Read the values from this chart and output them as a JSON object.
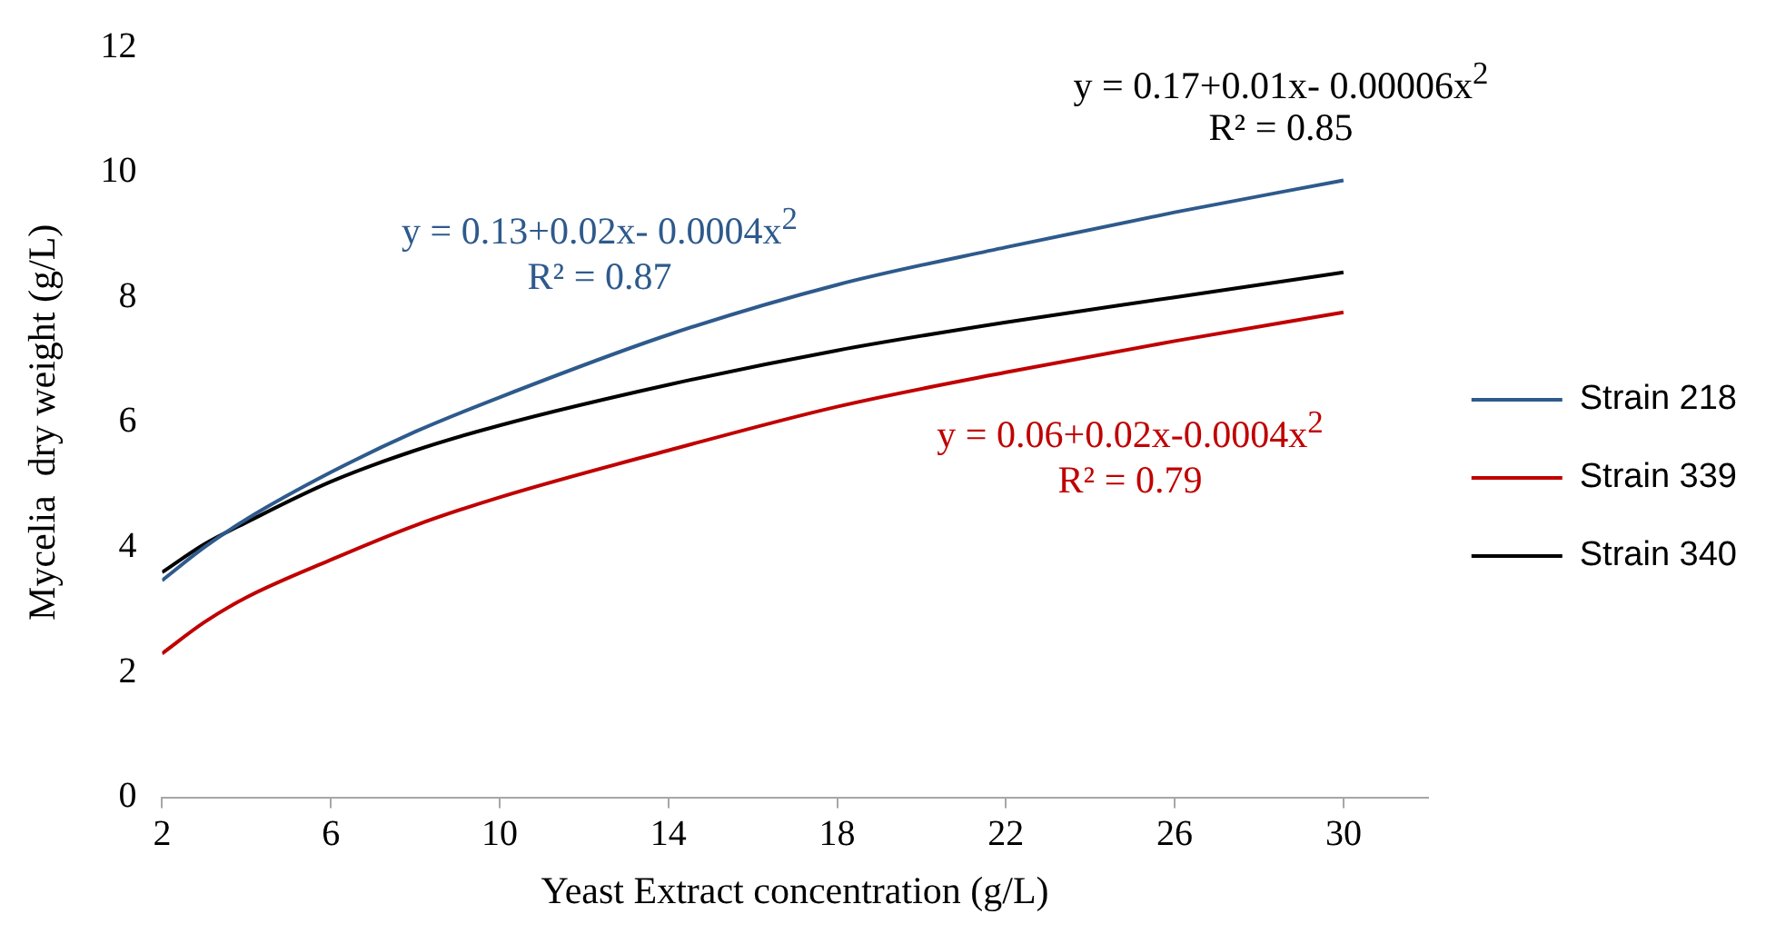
{
  "chart_data": {
    "type": "line",
    "xlabel": "Yeast Extract concentration (g/L)",
    "ylabel": "Mycelia  dry weight (g/L)",
    "x": [
      2,
      3,
      4,
      6,
      8,
      10,
      14,
      18,
      22,
      26,
      30
    ],
    "series": [
      {
        "name": "Strain 218",
        "color": "#2e5a8c",
        "values": [
          3.47,
          4.0,
          4.45,
          5.2,
          5.85,
          6.4,
          7.4,
          8.2,
          8.8,
          9.36,
          9.87
        ]
      },
      {
        "name": "Strain 339",
        "color": "#c00000",
        "values": [
          2.3,
          2.8,
          3.2,
          3.8,
          4.35,
          4.8,
          5.55,
          6.25,
          6.8,
          7.3,
          7.76
        ]
      },
      {
        "name": "Strain 340",
        "color": "#000000",
        "values": [
          3.6,
          4.05,
          4.4,
          5.05,
          5.55,
          5.95,
          6.6,
          7.15,
          7.6,
          8.0,
          8.4
        ]
      }
    ],
    "xlim": [
      2,
      32
    ],
    "xticks": [
      2,
      6,
      10,
      14,
      18,
      22,
      26,
      30
    ],
    "ylim": [
      0,
      12
    ],
    "yticks": [
      0,
      2,
      4,
      6,
      8,
      10,
      12
    ],
    "annotations": [
      "y = 0.13+0.02x- 0.0004x$^{2}$",
      "R² = 0.87",
      "y = 0.06+0.02x-0.0004x$^{2}$",
      "R² = 0.79",
      "y = 0.17+0.01x- 0.00006x$^{2}$",
      "R² = 0.85"
    ],
    "legend": "right",
    "grid": false,
    "marker": "none",
    "line_style": "solid"
  }
}
